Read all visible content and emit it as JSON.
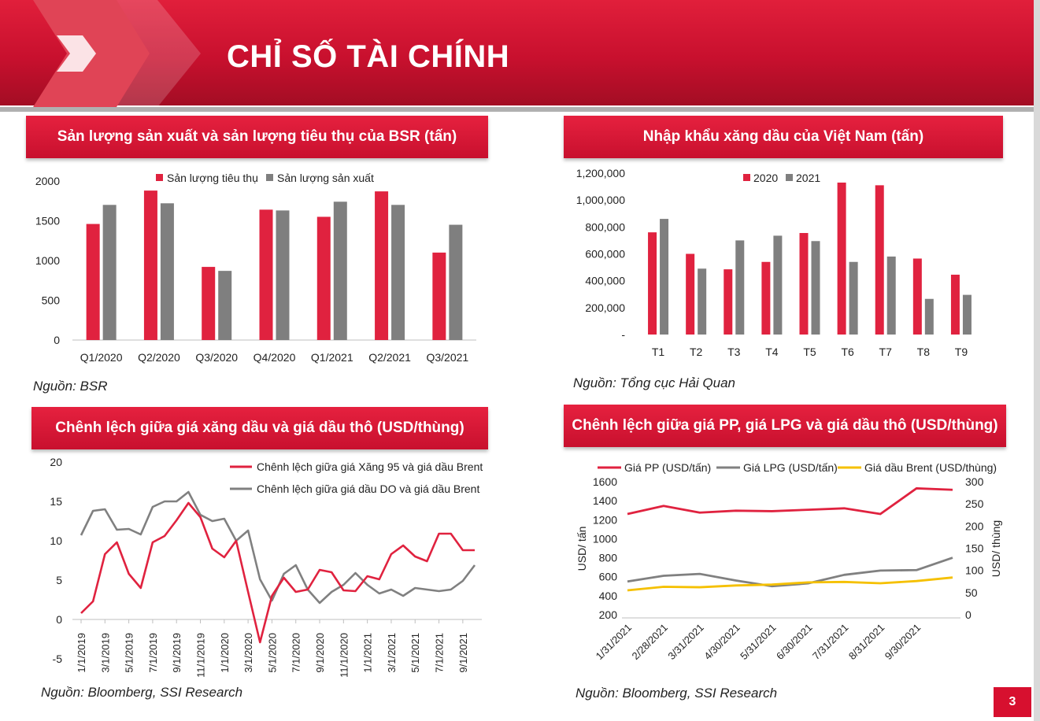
{
  "page": {
    "title": "CHỈ SỐ TÀI CHÍNH",
    "number": "3",
    "accent": "#d7102f"
  },
  "chart_data": [
    {
      "type": "bar",
      "title": "Sản lượng sản xuất và sản lượng tiêu thụ của BSR (tấn)",
      "source": "Nguồn: BSR",
      "categories": [
        "Q1/2020",
        "Q2/2020",
        "Q3/2020",
        "Q4/2020",
        "Q1/2021",
        "Q2/2021",
        "Q3/2021"
      ],
      "series": [
        {
          "name": "Sản lượng tiêu thụ",
          "color": "#e0223f",
          "values": [
            1460,
            1880,
            920,
            1640,
            1550,
            1870,
            1100
          ]
        },
        {
          "name": "Sản lượng sản xuất",
          "color": "#7f7f7f",
          "values": [
            1700,
            1720,
            870,
            1630,
            1740,
            1700,
            1450
          ]
        }
      ],
      "yticks": [
        "0",
        "500",
        "1000",
        "1500",
        "2000"
      ],
      "ylim": [
        0,
        2000
      ],
      "legend": "top"
    },
    {
      "type": "bar",
      "title": "Nhập khẩu xăng dầu của Việt Nam (tấn)",
      "source": "Nguồn: Tổng cục Hải Quan",
      "categories": [
        "T1",
        "T2",
        "T3",
        "T4",
        "T5",
        "T6",
        "T7",
        "T8",
        "T9"
      ],
      "series": [
        {
          "name": "2020",
          "color": "#e0223f",
          "values": [
            760000,
            600000,
            485000,
            540000,
            755000,
            1130000,
            1110000,
            565000,
            445000
          ]
        },
        {
          "name": "2021",
          "color": "#7f7f7f",
          "values": [
            860000,
            490000,
            700000,
            735000,
            695000,
            540000,
            580000,
            265000,
            295000
          ]
        }
      ],
      "yticks": [
        "-",
        "200,000",
        "400,000",
        "600,000",
        "800,000",
        "1,000,000",
        "1,200,000"
      ],
      "ylim": [
        0,
        1200000
      ],
      "legend": "top"
    },
    {
      "type": "line",
      "title": "Chênh lệch giữa giá xăng dầu và giá dầu thô (USD/thùng)",
      "source": "Nguồn: Bloomberg, SSI Research",
      "x": [
        "1/1/2019",
        "2/1/2019",
        "3/1/2019",
        "4/1/2019",
        "5/1/2019",
        "6/1/2019",
        "7/1/2019",
        "8/1/2019",
        "9/1/2019",
        "10/1/2019",
        "11/1/2019",
        "12/1/2019",
        "1/1/2020",
        "2/1/2020",
        "3/1/2020",
        "4/1/2020",
        "5/1/2020",
        "6/1/2020",
        "7/1/2020",
        "8/1/2020",
        "9/1/2020",
        "10/1/2020",
        "11/1/2020",
        "12/1/2020",
        "1/1/2021",
        "2/1/2021",
        "3/1/2021",
        "4/1/2021",
        "5/1/2021",
        "6/1/2021",
        "7/1/2021",
        "8/1/2021",
        "9/1/2021",
        "10/1/2021"
      ],
      "xticks": [
        "1/1/2019",
        "3/1/2019",
        "5/1/2019",
        "7/1/2019",
        "9/1/2019",
        "11/1/2019",
        "1/1/2020",
        "3/1/2020",
        "5/1/2020",
        "7/1/2020",
        "9/1/2020",
        "11/1/2020",
        "1/1/2021",
        "3/1/2021",
        "5/1/2021",
        "7/1/2021",
        "9/1/2021"
      ],
      "series": [
        {
          "name": "Chênh lệch giữa giá Xăng 95 và giá dầu Brent",
          "color": "#e0223f",
          "values": [
            0.8,
            2.3,
            8.3,
            9.8,
            5.8,
            4.0,
            9.8,
            10.6,
            12.6,
            14.8,
            13.0,
            9.0,
            7.9,
            10.0,
            3.5,
            -2.9,
            3.0,
            5.3,
            3.5,
            3.8,
            6.3,
            6.0,
            3.7,
            3.6,
            5.5,
            5.1,
            8.3,
            9.4,
            8.0,
            7.4,
            10.9,
            10.9,
            8.8,
            8.8
          ]
        },
        {
          "name": "Chênh lệch giữa giá dầu DO và giá dầu Brent",
          "color": "#808080",
          "values": [
            10.7,
            13.8,
            14.0,
            11.4,
            11.5,
            10.8,
            14.3,
            15.0,
            15.0,
            16.2,
            13.3,
            12.5,
            12.8,
            10.0,
            11.3,
            5.1,
            2.4,
            5.8,
            6.9,
            3.8,
            2.1,
            3.5,
            4.4,
            5.9,
            4.4,
            3.3,
            3.8,
            3.0,
            4.0,
            3.8,
            3.6,
            3.8,
            4.9,
            6.9
          ]
        }
      ],
      "yticks": [
        "-5",
        "0",
        "5",
        "10",
        "15",
        "20"
      ],
      "ylim": [
        -5,
        20
      ],
      "legend": "top-right"
    },
    {
      "type": "line",
      "title": "Chênh lệch giữa giá PP, giá LPG và giá dầu thô (USD/thùng)",
      "source": "Nguồn: Bloomberg, SSI Research",
      "x": [
        "1/31/2021",
        "2/28/2021",
        "3/31/2021",
        "4/30/2021",
        "5/31/2021",
        "6/30/2021",
        "7/31/2021",
        "8/31/2021",
        "9/30/2021",
        "10/31/2021"
      ],
      "xticks": [
        "1/31/2021",
        "2/28/2021",
        "3/31/2021",
        "4/30/2021",
        "5/31/2021",
        "6/30/2021",
        "7/31/2021",
        "8/31/2021",
        "9/30/2021"
      ],
      "ylabel": "USD/ tấn",
      "y2label": "USD/ thùng",
      "yticks": [
        "200",
        "400",
        "600",
        "800",
        "1000",
        "1200",
        "1400",
        "1600"
      ],
      "y2ticks": [
        "0",
        "50",
        "100",
        "150",
        "200",
        "250",
        "300"
      ],
      "ylim": [
        200,
        1600
      ],
      "y2lim": [
        0,
        300
      ],
      "series": [
        {
          "name": "Giá PP  (USD/tấn)",
          "color": "#e0223f",
          "axis": "left",
          "values": [
            1260,
            1345,
            1275,
            1295,
            1290,
            1305,
            1320,
            1260,
            1530,
            1515
          ]
        },
        {
          "name": "Giá LPG (USD/tấn)",
          "color": "#808080",
          "axis": "left",
          "values": [
            550,
            610,
            630,
            560,
            500,
            530,
            620,
            665,
            670,
            800
          ]
        },
        {
          "name": "Giá dầu Brent (USD/thùng)",
          "color": "#f5c000",
          "axis": "right",
          "values": [
            55,
            63,
            62,
            66,
            68,
            73,
            74,
            71,
            76,
            84
          ]
        }
      ],
      "legend": "top"
    }
  ]
}
